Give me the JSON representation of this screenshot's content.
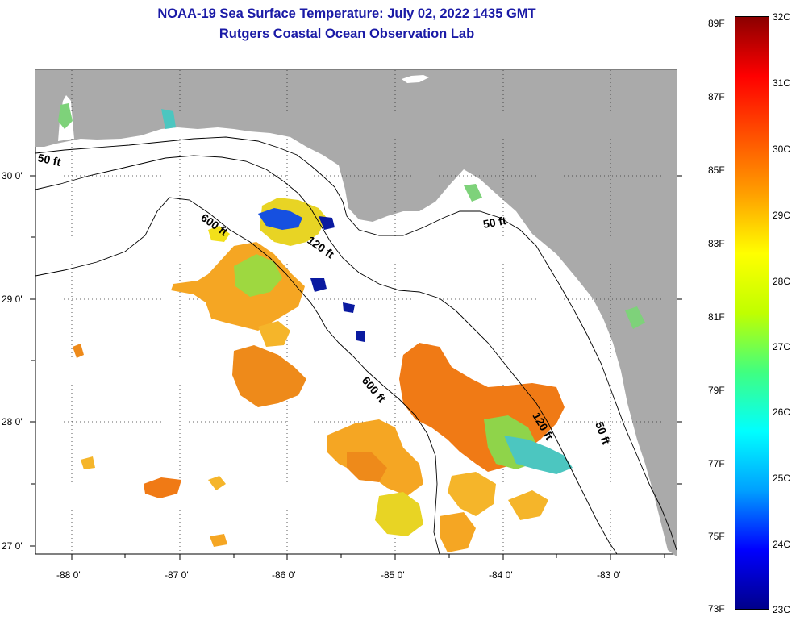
{
  "header": {
    "title": "NOAA-19 Sea Surface Temperature:  July 02, 2022 1435 GMT",
    "subtitle": "Rutgers Coastal Ocean Observation Lab"
  },
  "map": {
    "lat_labels": [
      "30 0'",
      "29 0'",
      "28 0'",
      "27 0'"
    ],
    "lon_labels": [
      "-88 0'",
      "-87 0'",
      "-86 0'",
      "-85 0'",
      "-84 0'",
      "-83 0'"
    ],
    "depth_labels": {
      "shelf_west": "50 ft",
      "slope_west": "600 ft",
      "mid_west": "120 ft",
      "shelf_east": "50 ft",
      "slope_south": "600 ft",
      "mid_south": "120 ft",
      "shelf_south": "50 ft"
    },
    "colors": {
      "land": "#aaaaaa",
      "ocean_nodata": "#ffffff",
      "contour": "#000000"
    }
  },
  "colorbar": {
    "fahrenheit": [
      "89F",
      "87F",
      "85F",
      "83F",
      "81F",
      "79F",
      "77F",
      "75F",
      "73F"
    ],
    "celsius": [
      "32C",
      "31C",
      "30C",
      "29C",
      "28C",
      "27C",
      "26C",
      "25C",
      "24C",
      "23C"
    ],
    "gradient": [
      "#00008b",
      "#0000ff",
      "#00a0ff",
      "#00ffff",
      "#40ff80",
      "#c0ff00",
      "#ffff00",
      "#ffa000",
      "#ff5000",
      "#ff0000",
      "#8b0000"
    ]
  }
}
